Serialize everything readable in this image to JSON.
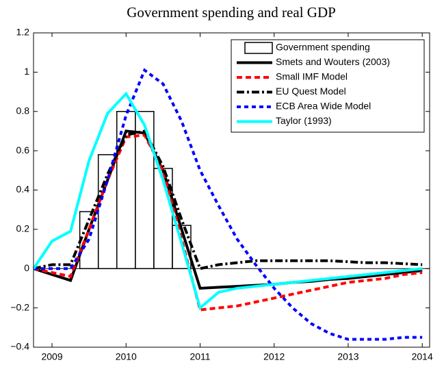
{
  "chart_data": {
    "type": "line",
    "title": "Government spending and real GDP",
    "x": [
      2008.75,
      2009,
      2009.25,
      2009.5,
      2009.75,
      2010,
      2010.25,
      2010.5,
      2010.75,
      2011,
      2011.25,
      2011.5,
      2011.75,
      2012,
      2012.25,
      2012.5,
      2012.75,
      2013,
      2013.25,
      2013.5,
      2013.75,
      2014
    ],
    "series": [
      {
        "name": "Government spending",
        "type": "bar",
        "color": "#000000",
        "x": [
          2009.5,
          2009.75,
          2010,
          2010.25,
          2010.5,
          2010.75
        ],
        "values": [
          0.29,
          0.58,
          0.8,
          0.8,
          0.51,
          0.22
        ]
      },
      {
        "name": "Smets and Wouters (2003)",
        "color": "#000000",
        "dash": "solid",
        "values": [
          0,
          -0.03,
          -0.06,
          0.2,
          0.45,
          0.7,
          0.69,
          0.5,
          0.2,
          -0.1,
          -0.095,
          -0.09,
          -0.085,
          -0.08,
          -0.07,
          -0.065,
          -0.055,
          -0.05,
          -0.04,
          -0.03,
          -0.02,
          -0.01
        ]
      },
      {
        "name": "Small IMF Model",
        "color": "#ff0000",
        "dash": "dashed",
        "values": [
          0,
          -0.02,
          -0.04,
          0.2,
          0.45,
          0.67,
          0.68,
          0.5,
          0.15,
          -0.21,
          -0.2,
          -0.19,
          -0.17,
          -0.15,
          -0.13,
          -0.11,
          -0.09,
          -0.07,
          -0.06,
          -0.05,
          -0.03,
          -0.02
        ]
      },
      {
        "name": "EU Quest Model",
        "color": "#000000",
        "dash": "dashdot",
        "values": [
          0,
          0.02,
          0.02,
          0.25,
          0.48,
          0.68,
          0.7,
          0.52,
          0.25,
          0,
          0.02,
          0.03,
          0.04,
          0.04,
          0.04,
          0.04,
          0.04,
          0.035,
          0.03,
          0.03,
          0.025,
          0.02
        ]
      },
      {
        "name": "ECB Area Wide Model",
        "color": "#0000ff",
        "dash": "dotted",
        "values": [
          0,
          0,
          0,
          0.15,
          0.45,
          0.78,
          1.01,
          0.94,
          0.75,
          0.5,
          0.32,
          0.15,
          0.02,
          -0.1,
          -0.2,
          -0.28,
          -0.33,
          -0.36,
          -0.36,
          -0.36,
          -0.35,
          -0.35
        ]
      },
      {
        "name": "Taylor (1993)",
        "color": "#00ffff",
        "dash": "solid",
        "values": [
          0,
          0.14,
          0.19,
          0.55,
          0.79,
          0.89,
          0.73,
          0.45,
          0.13,
          -0.2,
          -0.12,
          -0.1,
          -0.09,
          -0.08,
          -0.07,
          -0.06,
          -0.05,
          -0.04,
          -0.03,
          -0.02,
          -0.01,
          0
        ]
      }
    ],
    "xlim": [
      2008.75,
      2014.1
    ],
    "xticks": [
      2009,
      2010,
      2011,
      2012,
      2013,
      2014
    ],
    "ylim": [
      -0.4,
      1.2
    ],
    "yticks": [
      {
        "value": -0.4,
        "label": "−0.4"
      },
      {
        "value": -0.2,
        "label": "−0.2"
      },
      0,
      0.2,
      0.4,
      0.6,
      0.8,
      1,
      1.2
    ],
    "legend": "upper right"
  }
}
